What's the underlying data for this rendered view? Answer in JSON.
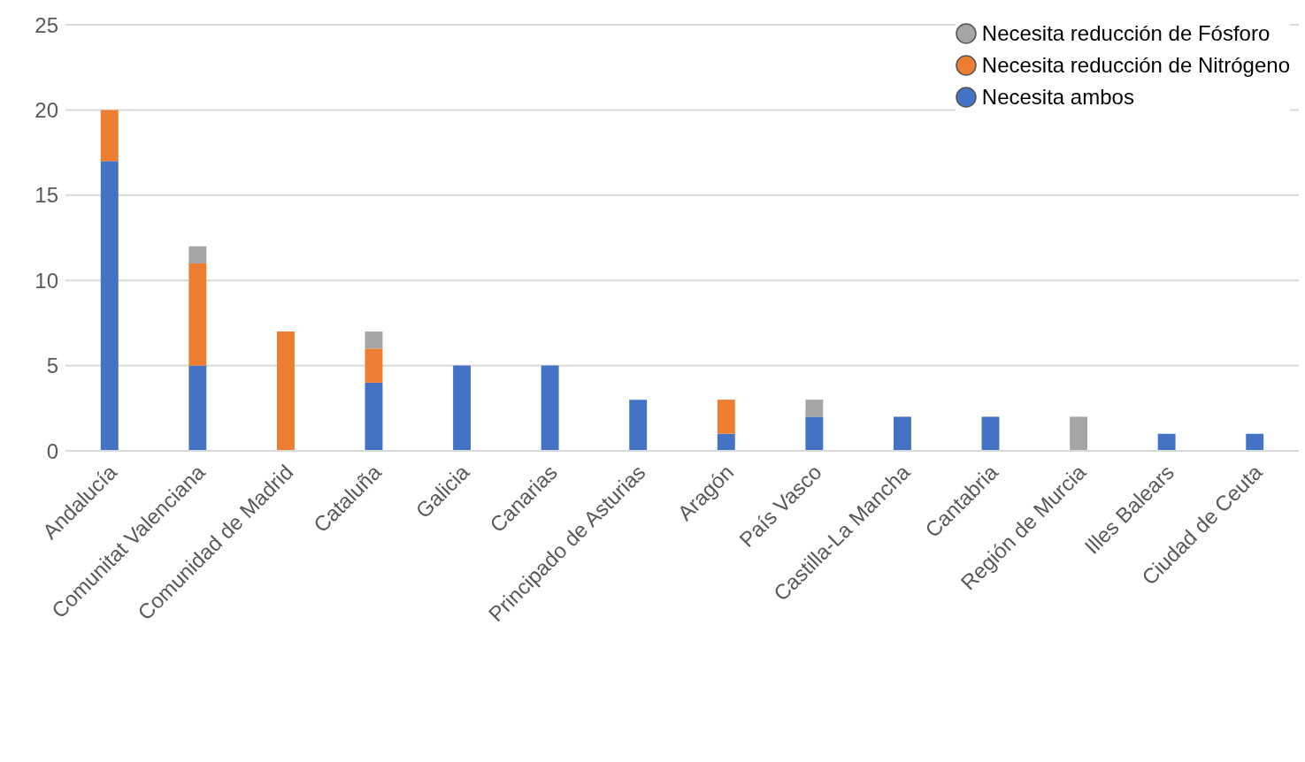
{
  "chart_data": {
    "type": "bar",
    "stacked": true,
    "categories": [
      "Andalucía",
      "Comunitat Valenciana",
      "Comunidad de Madrid",
      "Cataluña",
      "Galicia",
      "Canarias",
      "Principado de Asturias",
      "Aragón",
      "País Vasco",
      "Castilla-La Mancha",
      "Cantabria",
      "Región de Murcia",
      "Illes Balears",
      "Ciudad de Ceuta"
    ],
    "series": [
      {
        "name": "Necesita ambos",
        "color": "#4472c4",
        "values": [
          17,
          5,
          0,
          4,
          5,
          5,
          3,
          1,
          2,
          2,
          2,
          0,
          1,
          1
        ]
      },
      {
        "name": "Necesita reducción de Nitrógeno",
        "color": "#ed7d31",
        "values": [
          3,
          6,
          7,
          2,
          0,
          0,
          0,
          2,
          0,
          0,
          0,
          0,
          0,
          0
        ]
      },
      {
        "name": "Necesita reducción de Fósforo",
        "color": "#a5a5a5",
        "values": [
          0,
          1,
          0,
          1,
          0,
          0,
          0,
          0,
          1,
          0,
          0,
          2,
          0,
          0
        ]
      }
    ],
    "ylim": [
      0,
      25
    ],
    "yticks": [
      0,
      5,
      10,
      15,
      20,
      25
    ],
    "grid": "y",
    "legend": "top right",
    "marker": "circle"
  }
}
